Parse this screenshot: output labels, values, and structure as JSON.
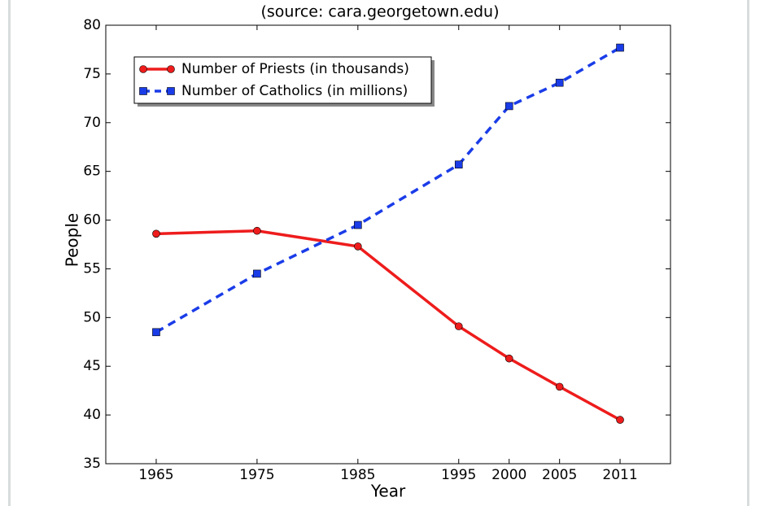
{
  "chart_data": {
    "type": "line",
    "subtitle": "(source: cara.georgetown.edu)",
    "x_label": "Year",
    "y_label": "People",
    "x": [
      1965,
      1975,
      1985,
      1995,
      2000,
      2005,
      2011
    ],
    "series": [
      {
        "name": "Number of Priests (in thousands)",
        "color": "#ee1c1c",
        "linestyle": "solid",
        "marker": "circle",
        "values": [
          58.6,
          58.9,
          57.3,
          49.1,
          45.8,
          42.9,
          39.5
        ]
      },
      {
        "name": "Number of Catholics (in millions)",
        "color": "#1a3ce8",
        "linestyle": "dashed",
        "marker": "square",
        "values": [
          48.5,
          54.5,
          59.5,
          65.7,
          71.7,
          74.1,
          77.7
        ]
      }
    ],
    "xlim": [
      1960,
      2016
    ],
    "xticks": [
      1965,
      1975,
      1985,
      1995,
      2000,
      2005,
      2011
    ],
    "ylim": [
      35,
      80
    ],
    "yticks": [
      35,
      40,
      45,
      50,
      55,
      60,
      65,
      70,
      75,
      80
    ],
    "legend": "upper left"
  }
}
